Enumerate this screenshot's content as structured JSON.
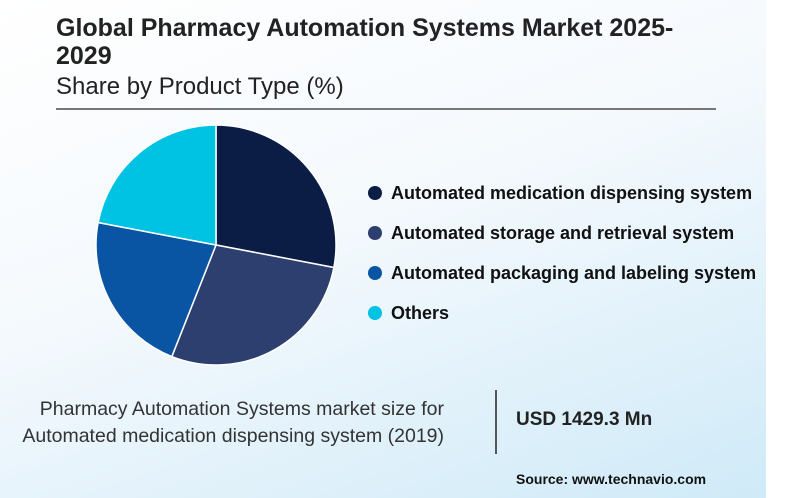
{
  "chart_data": {
    "type": "pie",
    "title": "Global Pharmacy Automation Systems Market 2025-2029",
    "subtitle": "Share by Product Type (%)",
    "legend_position": "right",
    "categories": [
      "Automated medication dispensing system",
      "Automated storage and retrieval system",
      "Automated packaging and labeling system",
      "Others"
    ],
    "values": [
      28,
      28,
      22,
      22
    ],
    "colors": [
      "#0b1d45",
      "#2c3f6f",
      "#0a55a3",
      "#00c2e3"
    ]
  },
  "footer": {
    "note": "Pharmacy Automation Systems market size for Automated medication dispensing system (2019)",
    "value": "USD 1429.3 Mn",
    "source": "Source: www.technavio.com"
  }
}
